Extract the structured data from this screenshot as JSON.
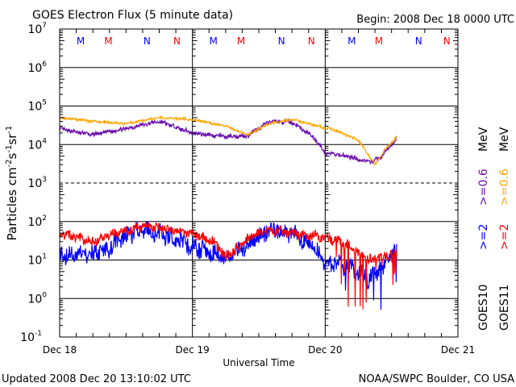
{
  "chart_data": {
    "type": "line",
    "title": "GOES Electron Flux (5 minute data)",
    "begin_label": "Begin: 2008 Dec 18 0000 UTC",
    "xlabel": "Universal Time",
    "ylabel": "Particles cm-2s-1sr-1",
    "yscale": "log",
    "ylim": [
      0.1,
      10000000
    ],
    "xlim_hours": [
      0,
      72
    ],
    "y_ticks": [
      {
        "base": "10",
        "exp": "7",
        "value": 10000000
      },
      {
        "base": "10",
        "exp": "6",
        "value": 1000000
      },
      {
        "base": "10",
        "exp": "5",
        "value": 100000
      },
      {
        "base": "10",
        "exp": "4",
        "value": 10000
      },
      {
        "base": "10",
        "exp": "3",
        "value": 1000
      },
      {
        "base": "10",
        "exp": "2",
        "value": 100
      },
      {
        "base": "10",
        "exp": "1",
        "value": 10
      },
      {
        "base": "10",
        "exp": "0",
        "value": 1
      },
      {
        "base": "10",
        "exp": "-1",
        "value": 0.1
      }
    ],
    "x_ticks": [
      {
        "label": "Dec 18",
        "hour": 0
      },
      {
        "label": "Dec 19",
        "hour": 24
      },
      {
        "label": "Dec 20",
        "hour": 48
      },
      {
        "label": "Dec 21",
        "hour": 72
      }
    ],
    "dashed_gridline_value": 1000,
    "markers": [
      {
        "label": "M",
        "hour": 3.8,
        "color": "#0000ff"
      },
      {
        "label": "M",
        "hour": 8.8,
        "color": "#ff0000"
      },
      {
        "label": "N",
        "hour": 15.8,
        "color": "#0000ff"
      },
      {
        "label": "N",
        "hour": 21.2,
        "color": "#ff0000"
      },
      {
        "label": "M",
        "hour": 27.8,
        "color": "#0000ff"
      },
      {
        "label": "M",
        "hour": 32.8,
        "color": "#ff0000"
      },
      {
        "label": "N",
        "hour": 40.1,
        "color": "#0000ff"
      },
      {
        "label": "N",
        "hour": 45.5,
        "color": "#ff0000"
      },
      {
        "label": "M",
        "hour": 52.8,
        "color": "#0000ff"
      },
      {
        "label": "M",
        "hour": 57.7,
        "color": "#ff0000"
      },
      {
        "label": "N",
        "hour": 64.9,
        "color": "#0000ff"
      },
      {
        "label": "N",
        "hour": 70.0,
        "color": "#ff0000"
      }
    ],
    "series": [
      {
        "name": "GOES10 >=0.6 MeV",
        "legend": ">=0.6",
        "color": "#6a0dad",
        "noise": 0.05,
        "points": [
          [
            0,
            25000
          ],
          [
            6,
            18000
          ],
          [
            12,
            26000
          ],
          [
            18,
            40000
          ],
          [
            24,
            20000
          ],
          [
            30,
            16000
          ],
          [
            34,
            17000
          ],
          [
            38,
            40000
          ],
          [
            42,
            38000
          ],
          [
            46,
            15000
          ],
          [
            48,
            6000
          ],
          [
            52,
            5000
          ],
          [
            56,
            3500
          ],
          [
            58,
            4500
          ],
          [
            61,
            15000
          ]
        ]
      },
      {
        "name": "GOES11 >=0.6 MeV",
        "legend": ">=0.6",
        "color": "#ffa500",
        "noise": 0.03,
        "points": [
          [
            0,
            50000
          ],
          [
            6,
            40000
          ],
          [
            12,
            35000
          ],
          [
            18,
            50000
          ],
          [
            24,
            45000
          ],
          [
            30,
            30000
          ],
          [
            34,
            18000
          ],
          [
            38,
            35000
          ],
          [
            42,
            45000
          ],
          [
            46,
            32000
          ],
          [
            50,
            23000
          ],
          [
            54,
            13000
          ],
          [
            57,
            3000
          ],
          [
            59,
            8000
          ],
          [
            61,
            16000
          ]
        ]
      },
      {
        "name": "GOES10 >=2 MeV",
        "legend": ">=2",
        "color": "#0000ff",
        "noise": 0.22,
        "points": [
          [
            0,
            14
          ],
          [
            4,
            13
          ],
          [
            8,
            17
          ],
          [
            14,
            60
          ],
          [
            18,
            50
          ],
          [
            22,
            30
          ],
          [
            26,
            18
          ],
          [
            30,
            12
          ],
          [
            34,
            25
          ],
          [
            38,
            65
          ],
          [
            42,
            50
          ],
          [
            46,
            20
          ],
          [
            48,
            9
          ],
          [
            52,
            7
          ],
          [
            56,
            3
          ],
          [
            61,
            20
          ]
        ]
      },
      {
        "name": "GOES11 >=2 MeV",
        "legend": ">=2",
        "color": "#ff0000",
        "noise": 0.12,
        "points": [
          [
            0,
            50
          ],
          [
            6,
            30
          ],
          [
            14,
            75
          ],
          [
            18,
            70
          ],
          [
            24,
            50
          ],
          [
            28,
            30
          ],
          [
            30,
            12
          ],
          [
            34,
            35
          ],
          [
            38,
            60
          ],
          [
            44,
            45
          ],
          [
            48,
            40
          ],
          [
            52,
            25
          ],
          [
            56,
            10
          ],
          [
            61,
            15
          ]
        ]
      }
    ],
    "legend": {
      "goes10": "GOES10",
      "goes11": "GOES11",
      "unit": "MeV",
      "ge2": ">=2",
      "ge06": ">=0.6",
      "placement": "right"
    }
  },
  "footer": {
    "updated": "Updated 2008 Dec 20 13:10:02 UTC",
    "source": "NOAA/SWPC Boulder, CO USA"
  }
}
